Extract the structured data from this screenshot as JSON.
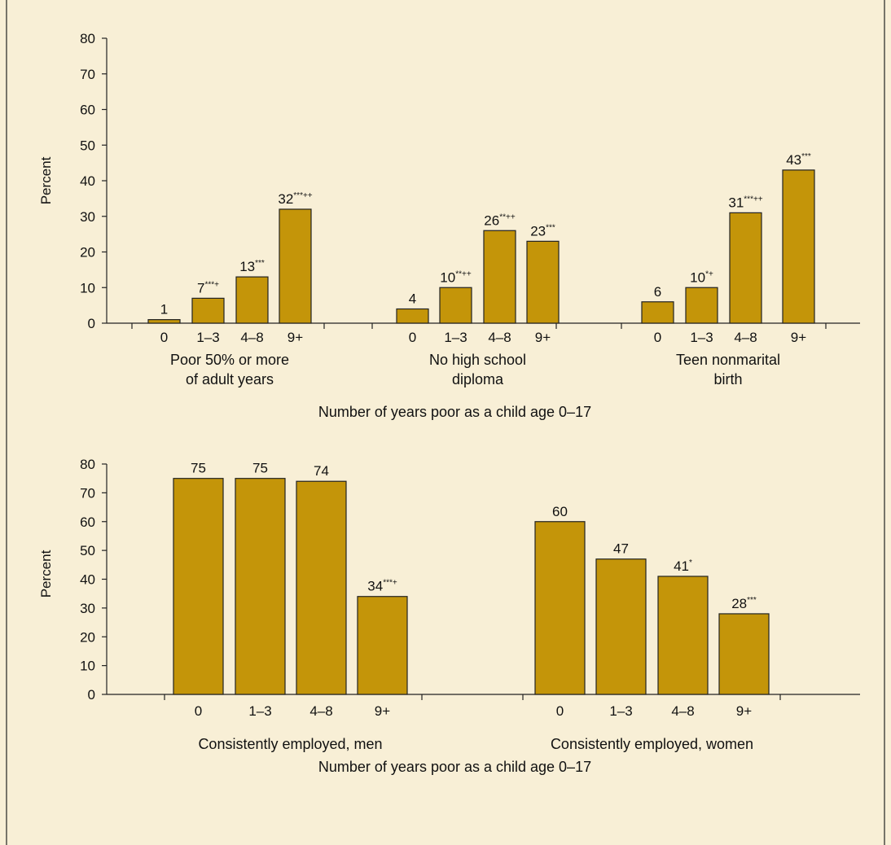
{
  "colors": {
    "background": "#f8efd6",
    "bar": "#c49509",
    "bar_stroke": "#222222",
    "text": "#111111"
  },
  "chart_data": [
    {
      "type": "bar",
      "ylabel": "Percent",
      "ylim": [
        0,
        80
      ],
      "yticks": [
        "0",
        "10",
        "20",
        "30",
        "40",
        "50",
        "60",
        "70",
        "80"
      ],
      "xlabel": "Number of years poor as a child age 0–17",
      "categories": [
        "0",
        "1–3",
        "4–8",
        "9+"
      ],
      "groups": [
        {
          "label_lines": [
            "Poor 50% or more",
            "of adult years"
          ],
          "values": [
            1,
            7,
            13,
            32
          ],
          "value_labels": [
            "1",
            "7",
            "13",
            "32"
          ],
          "sig_marks": [
            "",
            "***+",
            "***",
            "***++"
          ]
        },
        {
          "label_lines": [
            "No high school",
            "diploma"
          ],
          "values": [
            4,
            10,
            26,
            23
          ],
          "value_labels": [
            "4",
            "10",
            "26",
            "23"
          ],
          "sig_marks": [
            "",
            "**++",
            "**++",
            "***"
          ]
        },
        {
          "label_lines": [
            "Teen nonmarital",
            "birth"
          ],
          "values": [
            6,
            10,
            31,
            43
          ],
          "value_labels": [
            "6",
            "10",
            "31",
            "43"
          ],
          "sig_marks": [
            "",
            "*+",
            "***++",
            "***"
          ]
        }
      ]
    },
    {
      "type": "bar",
      "ylabel": "Percent",
      "ylim": [
        0,
        80
      ],
      "yticks": [
        "0",
        "10",
        "20",
        "30",
        "40",
        "50",
        "60",
        "70",
        "80"
      ],
      "xlabel": "Number of years poor as a child age 0–17",
      "categories": [
        "0",
        "1–3",
        "4–8",
        "9+"
      ],
      "groups": [
        {
          "label_lines": [
            "Consistently employed, men"
          ],
          "values": [
            75,
            75,
            74,
            34
          ],
          "value_labels": [
            "75",
            "75",
            "74",
            "34"
          ],
          "sig_marks": [
            "",
            "",
            "",
            "***+"
          ]
        },
        {
          "label_lines": [
            "Consistently employed, women"
          ],
          "values": [
            60,
            47,
            41,
            28
          ],
          "value_labels": [
            "60",
            "47",
            "41",
            "28"
          ],
          "sig_marks": [
            "",
            "",
            "*",
            "***"
          ]
        }
      ]
    }
  ]
}
